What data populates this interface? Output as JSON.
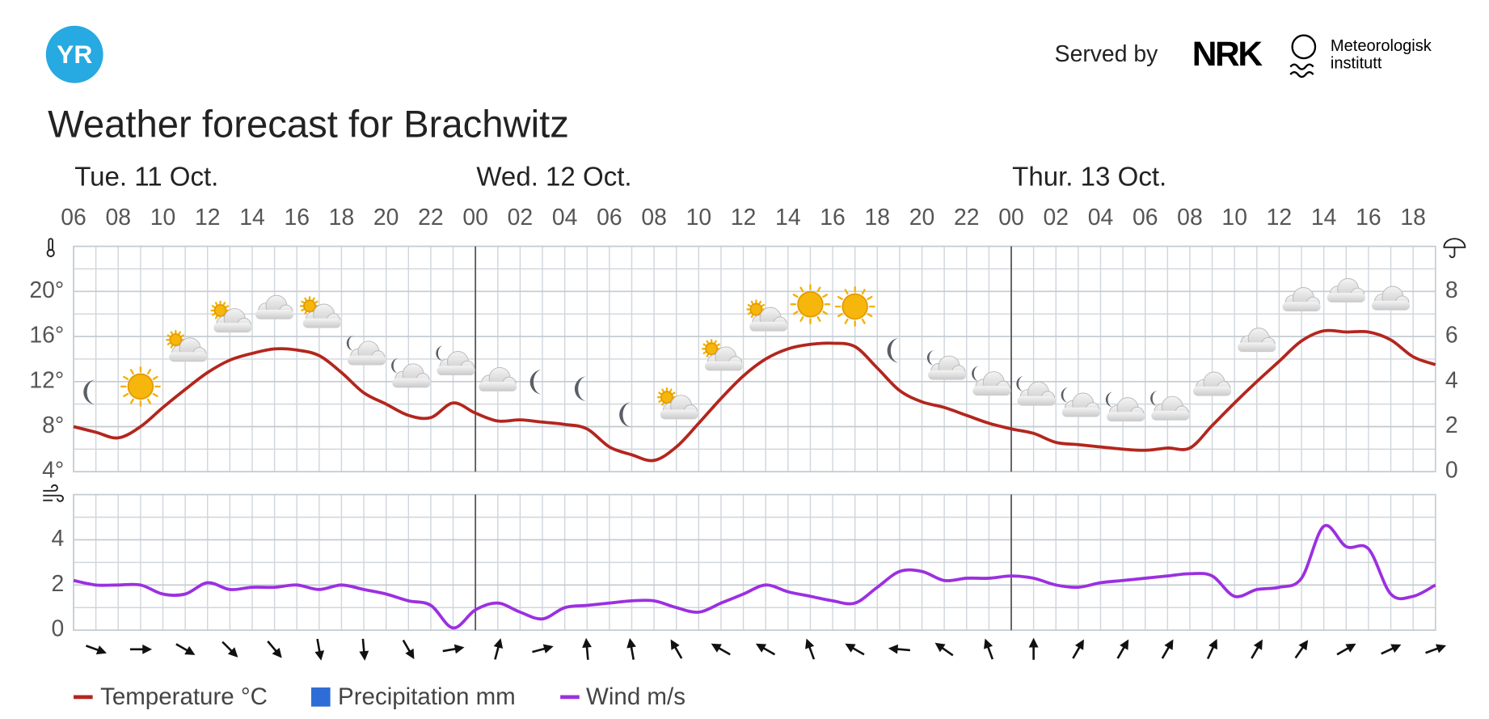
{
  "header": {
    "logo": "YR",
    "served_by": "Served by",
    "partner": "NRK",
    "institute": [
      "Meteorologisk",
      "institutt"
    ]
  },
  "title": "Weather forecast for Brachwitz",
  "days": [
    "Tue. 11 Oct.",
    "Wed. 12 Oct.",
    "Thur. 13 Oct."
  ],
  "chart_data": [
    {
      "type": "line",
      "categories": [
        "06",
        null,
        "08",
        null,
        "10",
        null,
        "12",
        null,
        "14",
        null,
        "16",
        null,
        "18",
        null,
        "20",
        null,
        "22",
        null,
        "00",
        null,
        "02",
        null,
        "04",
        null,
        "06",
        null,
        "08",
        null,
        "10",
        null,
        "12",
        null,
        "14",
        null,
        "16",
        null,
        "18",
        null,
        "20",
        null,
        "22",
        null,
        "00",
        null,
        "02",
        null,
        "04",
        null,
        "06",
        null,
        "08",
        null,
        "10",
        null,
        "12",
        null,
        "14",
        null,
        "16",
        null,
        "18",
        null
      ],
      "ylim": [
        4,
        24
      ],
      "yticks": [
        {
          "value": 4,
          "label": "4°"
        },
        {
          "value": 8,
          "label": "8°"
        },
        {
          "value": 12,
          "label": "12°"
        },
        {
          "value": 16,
          "label": "16°"
        },
        {
          "value": 20,
          "label": "20°"
        }
      ],
      "y2lim": [
        0,
        10
      ],
      "y2ticks": [
        0,
        2,
        4,
        6,
        8
      ],
      "grid": true,
      "series": [
        {
          "name": "Temperature °C",
          "color": "#b3261e",
          "values": [
            8.0,
            7.5,
            7.0,
            8.0,
            9.7,
            11.3,
            12.8,
            13.9,
            14.5,
            14.9,
            14.8,
            14.3,
            12.8,
            11.0,
            10.0,
            9.0,
            8.8,
            10.1,
            9.2,
            8.5,
            8.6,
            8.4,
            8.2,
            7.8,
            6.2,
            5.5,
            5.0,
            6.2,
            8.3,
            10.5,
            12.5,
            14.0,
            14.9,
            15.3,
            15.4,
            15.1,
            13.2,
            11.2,
            10.2,
            9.7,
            9.0,
            8.3,
            7.8,
            7.4,
            6.6,
            6.4,
            6.2,
            6.0,
            5.9,
            6.1,
            6.1,
            8.1,
            10.1,
            12.0,
            13.8,
            15.6,
            16.5,
            16.4,
            16.4,
            15.7,
            14.2,
            13.5
          ]
        },
        {
          "name": "Precipitation mm",
          "color": "#2e6dd6",
          "axis": "y2"
        }
      ],
      "weather_symbols": [
        null,
        "moon",
        null,
        "sun",
        null,
        "partly-day",
        null,
        "partly-day",
        null,
        "cloud",
        null,
        "partly-day",
        null,
        "partly-night",
        null,
        "partly-night",
        null,
        "partly-night",
        null,
        "cloud",
        null,
        "moon",
        null,
        "moon",
        null,
        "moon",
        null,
        "partly-day",
        null,
        "partly-day",
        null,
        "partly-day",
        null,
        "sun",
        null,
        "sun",
        null,
        "moon",
        null,
        "partly-night",
        null,
        "partly-night",
        null,
        "partly-night",
        null,
        "partly-night",
        null,
        "partly-night",
        null,
        "partly-night",
        null,
        "cloud",
        null,
        "cloud",
        null,
        "cloud",
        null,
        "cloud",
        null,
        "cloud",
        null,
        null
      ]
    },
    {
      "type": "line",
      "ylim": [
        0,
        6
      ],
      "yticks": [
        0,
        2,
        4
      ],
      "grid": true,
      "series": [
        {
          "name": "Wind m/s",
          "color": "#9b30e0",
          "values": [
            2.2,
            2.0,
            2.0,
            2.0,
            1.6,
            1.6,
            2.1,
            1.8,
            1.9,
            1.9,
            2.0,
            1.8,
            2.0,
            1.8,
            1.6,
            1.3,
            1.1,
            0.1,
            0.9,
            1.2,
            0.8,
            0.5,
            1.0,
            1.1,
            1.2,
            1.3,
            1.3,
            1.0,
            0.8,
            1.2,
            1.6,
            2.0,
            1.7,
            1.5,
            1.3,
            1.2,
            1.9,
            2.6,
            2.6,
            2.2,
            2.3,
            2.3,
            2.4,
            2.3,
            2.0,
            1.9,
            2.1,
            2.2,
            2.3,
            2.4,
            2.5,
            2.4,
            1.5,
            1.8,
            1.9,
            2.3,
            4.6,
            3.7,
            3.6,
            1.6,
            1.5,
            2.0
          ]
        }
      ],
      "wind_direction": [
        null,
        110,
        null,
        90,
        null,
        120,
        null,
        135,
        null,
        140,
        null,
        170,
        null,
        175,
        null,
        150,
        null,
        80,
        null,
        15,
        null,
        75,
        null,
        355,
        null,
        350,
        null,
        330,
        null,
        300,
        null,
        300,
        null,
        340,
        null,
        300,
        null,
        275,
        null,
        305,
        null,
        340,
        null,
        0,
        null,
        30,
        null,
        30,
        null,
        30,
        null,
        25,
        null,
        30,
        null,
        35,
        null,
        60,
        null,
        65,
        null,
        70
      ]
    }
  ]
}
